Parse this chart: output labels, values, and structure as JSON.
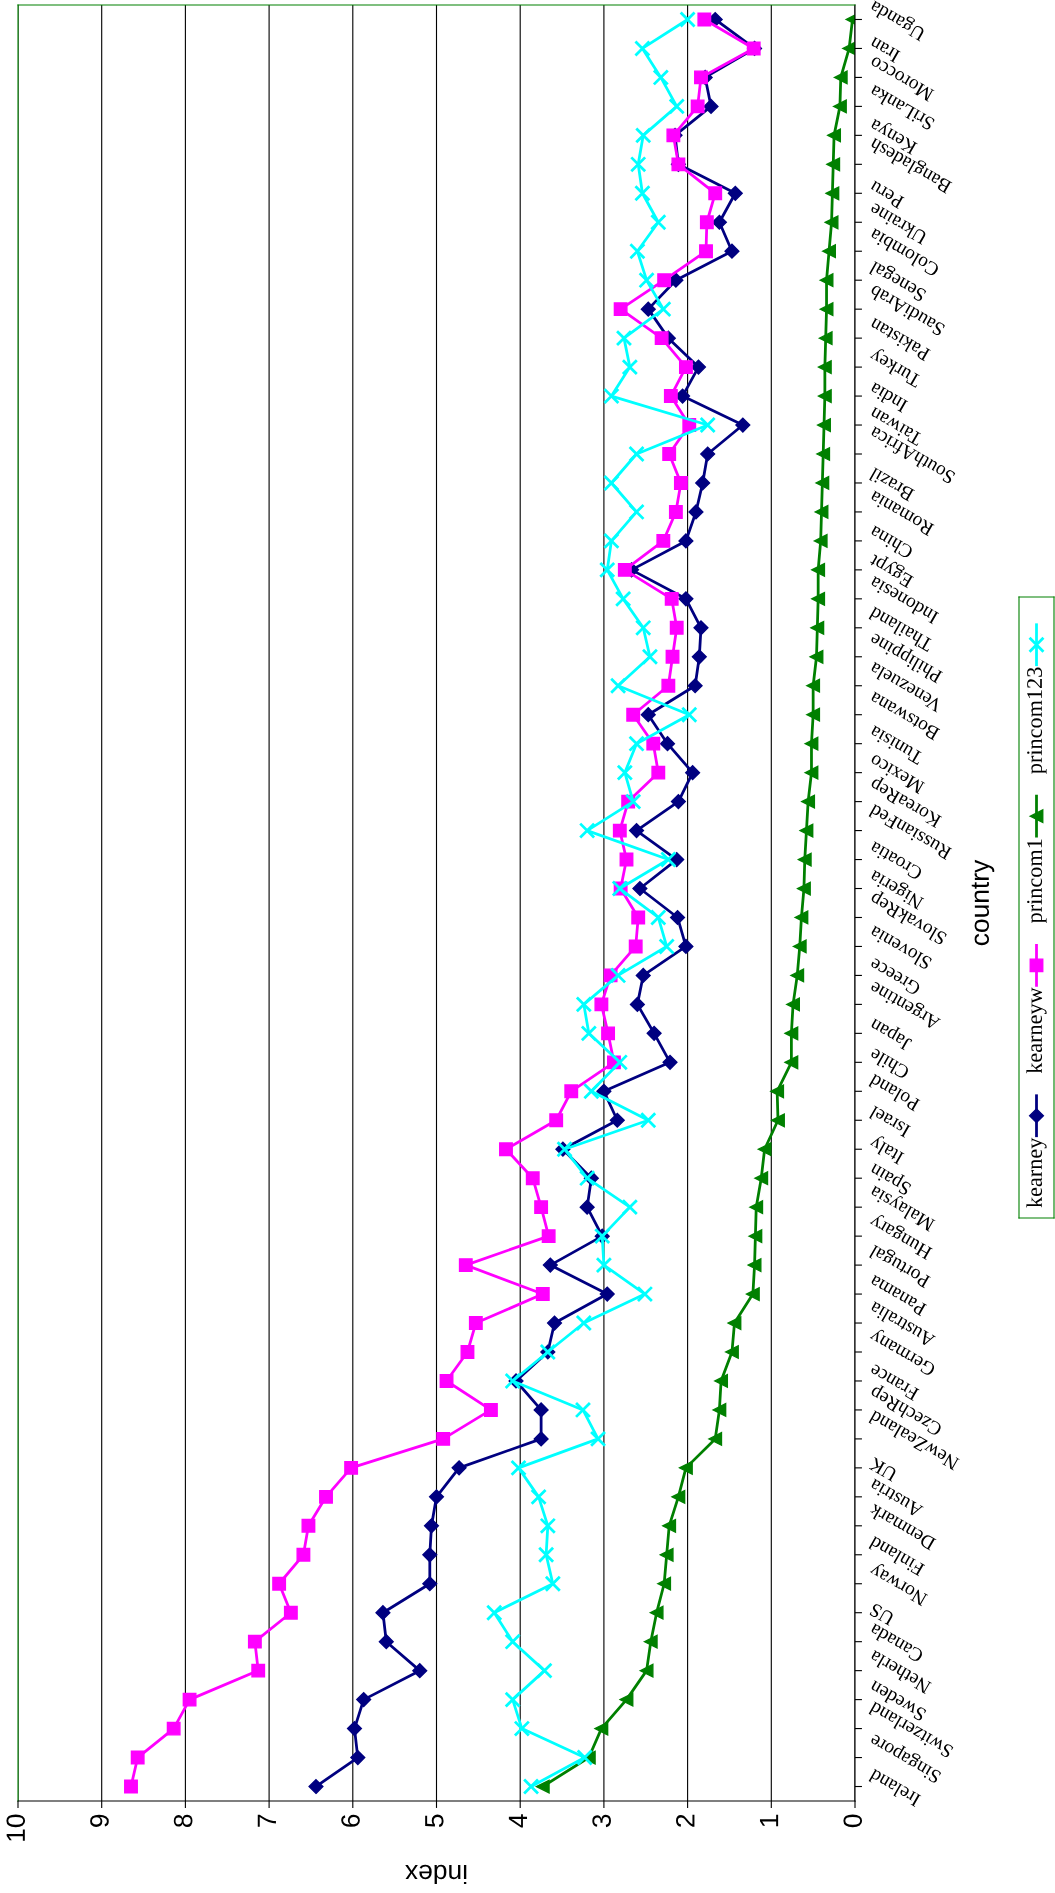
{
  "chart_data": {
    "type": "line",
    "orientation": "horizontal",
    "xlabel": "index",
    "ylabel": "country",
    "categories": [
      "Uganda",
      "Iran",
      "Morocco",
      "SriLanka",
      "Kenya",
      "Bangladesh",
      "Peru",
      "Ukraine",
      "Colombia",
      "Senegal",
      "SaudiArab",
      "Pakistan",
      "Turkey",
      "India",
      "Taiwan",
      "SouthAfrica",
      "Brazil",
      "Romania",
      "China",
      "Egypt",
      "Indonesia",
      "Thailand",
      "Philippine",
      "Venezuela",
      "Botswana",
      "Tunisia",
      "Mexico",
      "KoreaRep",
      "RussianFed",
      "Croatia",
      "Nigeria",
      "SlovakRep",
      "Slovenia",
      "Greece",
      "Argentine",
      "Japan",
      "Chile",
      "Poland",
      "Israel",
      "Italy",
      "Spain",
      "Malaysia",
      "Hungary",
      "Portugal",
      "Panama",
      "Australia",
      "Germany",
      "France",
      "CzechRep",
      "NewZealand",
      "UK",
      "Austria",
      "Denmark",
      "Finland",
      "Norway",
      "US",
      "Canada",
      "Netherla",
      "Sweden",
      "Switzerland",
      "Singapore",
      "Ireland"
    ],
    "series": [
      {
        "name": "kearney",
        "color": "#000080",
        "marker": "diamond",
        "values": [
          1.67,
          1.2,
          1.79,
          1.72,
          2.15,
          2.11,
          1.43,
          1.62,
          1.47,
          2.14,
          2.47,
          2.23,
          1.87,
          2.06,
          1.34,
          1.76,
          1.82,
          1.9,
          2.02,
          2.67,
          2.02,
          1.84,
          1.86,
          1.91,
          2.47,
          2.24,
          1.94,
          2.11,
          2.61,
          2.13,
          2.57,
          2.12,
          2.02,
          2.53,
          2.6,
          2.4,
          2.21,
          3.0,
          2.84,
          3.49,
          3.15,
          3.2,
          3.02,
          3.64,
          2.96,
          3.59,
          3.67,
          4.05,
          3.75,
          3.75,
          4.73,
          5.0,
          5.06,
          5.08,
          5.08,
          5.64,
          5.6,
          5.2,
          5.87,
          5.98,
          5.94,
          6.44
        ]
      },
      {
        "name": "kearneyw",
        "color": "#ff00ff",
        "marker": "square",
        "values": [
          1.8,
          1.21,
          1.84,
          1.88,
          2.17,
          2.11,
          1.67,
          1.77,
          1.78,
          2.28,
          2.8,
          2.31,
          2.02,
          2.2,
          1.98,
          2.22,
          2.08,
          2.14,
          2.29,
          2.75,
          2.19,
          2.13,
          2.18,
          2.23,
          2.65,
          2.41,
          2.35,
          2.71,
          2.81,
          2.73,
          2.8,
          2.59,
          2.62,
          2.92,
          3.03,
          2.95,
          2.88,
          3.39,
          3.57,
          4.17,
          3.85,
          3.75,
          3.66,
          4.65,
          3.73,
          4.53,
          4.63,
          4.88,
          4.35,
          4.92,
          6.02,
          6.32,
          6.53,
          6.59,
          6.88,
          6.74,
          7.17,
          7.13,
          7.95,
          8.14,
          8.57,
          8.65
        ]
      },
      {
        "name": "princom1",
        "color": "#008000",
        "marker": "triangle",
        "values": [
          0.03,
          0.07,
          0.17,
          0.18,
          0.25,
          0.26,
          0.27,
          0.28,
          0.31,
          0.34,
          0.34,
          0.35,
          0.36,
          0.36,
          0.37,
          0.38,
          0.39,
          0.4,
          0.41,
          0.44,
          0.44,
          0.45,
          0.46,
          0.5,
          0.5,
          0.52,
          0.52,
          0.56,
          0.58,
          0.6,
          0.61,
          0.64,
          0.66,
          0.69,
          0.74,
          0.76,
          0.76,
          0.93,
          0.92,
          1.08,
          1.12,
          1.18,
          1.19,
          1.2,
          1.22,
          1.44,
          1.47,
          1.6,
          1.62,
          1.67,
          2.02,
          2.11,
          2.22,
          2.25,
          2.28,
          2.37,
          2.44,
          2.49,
          2.73,
          3.03,
          3.18,
          3.73
        ]
      },
      {
        "name": "princom123",
        "color": "#00ffff",
        "marker": "cross",
        "values": [
          2.0,
          2.54,
          2.32,
          2.13,
          2.53,
          2.59,
          2.54,
          2.35,
          2.6,
          2.49,
          2.29,
          2.76,
          2.69,
          2.91,
          1.76,
          2.61,
          2.91,
          2.61,
          2.91,
          2.96,
          2.77,
          2.53,
          2.45,
          2.83,
          1.98,
          2.61,
          2.75,
          2.65,
          3.2,
          2.23,
          2.81,
          2.35,
          2.25,
          2.83,
          3.24,
          3.18,
          2.81,
          3.15,
          2.47,
          3.47,
          3.2,
          2.69,
          3.02,
          3.0,
          2.51,
          3.24,
          3.67,
          4.09,
          3.25,
          3.07,
          4.02,
          3.78,
          3.67,
          3.69,
          3.61,
          4.31,
          4.09,
          3.71,
          4.09,
          3.98,
          3.23,
          3.87
        ]
      }
    ],
    "xlim": [
      10,
      0
    ],
    "xticks": [
      10,
      9,
      8,
      7,
      6,
      5,
      4,
      3,
      2,
      1,
      0
    ],
    "grid": "x",
    "legend": "right"
  }
}
